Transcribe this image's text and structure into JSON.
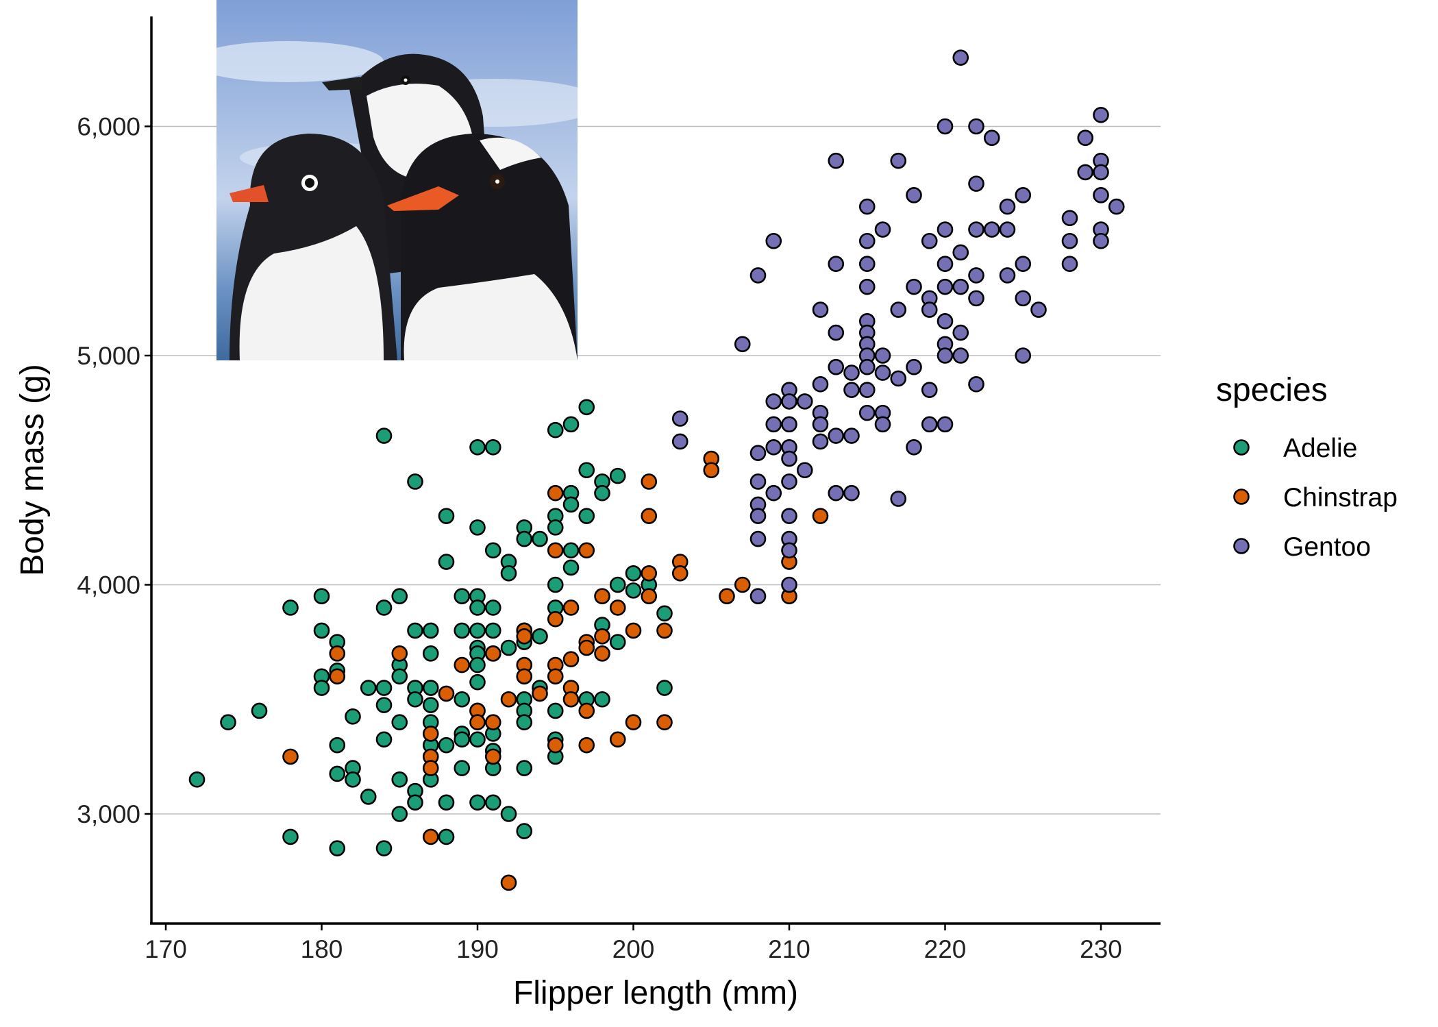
{
  "chart_data": {
    "type": "scatter",
    "title": "",
    "xlabel": "Flipper length (mm)",
    "ylabel": "Body mass (g)",
    "xlim": [
      169,
      234
    ],
    "ylim": [
      2520,
      6500
    ],
    "xticks": [
      170,
      180,
      190,
      200,
      210,
      220,
      230
    ],
    "xtick_labels": [
      "170",
      "180",
      "190",
      "200",
      "210",
      "220",
      "230"
    ],
    "yticks": [
      3000,
      4000,
      5000,
      6000
    ],
    "ytick_labels": [
      "3,000",
      "4,000",
      "5,000",
      "6,000"
    ],
    "grid": "horizontal major gridlines",
    "legend": {
      "title": "species",
      "position": "right"
    },
    "inset_image": "illustration of three penguins (Adelie, Chinstrap, Gentoo) in front of a sky and sea background",
    "series": [
      {
        "name": "Adelie",
        "color": "#1B9E77",
        "points": [
          [
            172,
            3150
          ],
          [
            174,
            3400
          ],
          [
            176,
            3450
          ],
          [
            178,
            3900
          ],
          [
            178,
            2900
          ],
          [
            180,
            3950
          ],
          [
            180,
            3800
          ],
          [
            180,
            3600
          ],
          [
            180,
            3550
          ],
          [
            181,
            3750
          ],
          [
            181,
            3625
          ],
          [
            181,
            3300
          ],
          [
            181,
            3175
          ],
          [
            181,
            2850
          ],
          [
            182,
            3425
          ],
          [
            182,
            3200
          ],
          [
            182,
            3150
          ],
          [
            183,
            3550
          ],
          [
            183,
            3075
          ],
          [
            184,
            4650
          ],
          [
            184,
            3900
          ],
          [
            184,
            3550
          ],
          [
            184,
            3475
          ],
          [
            184,
            3325
          ],
          [
            184,
            2850
          ],
          [
            185,
            3950
          ],
          [
            185,
            3650
          ],
          [
            185,
            3600
          ],
          [
            185,
            3400
          ],
          [
            185,
            3150
          ],
          [
            185,
            3000
          ],
          [
            186,
            4450
          ],
          [
            186,
            3800
          ],
          [
            186,
            3550
          ],
          [
            186,
            3500
          ],
          [
            186,
            3100
          ],
          [
            186,
            3050
          ],
          [
            187,
            3800
          ],
          [
            187,
            3700
          ],
          [
            187,
            3550
          ],
          [
            187,
            3475
          ],
          [
            187,
            3400
          ],
          [
            187,
            3300
          ],
          [
            187,
            3150
          ],
          [
            188,
            4300
          ],
          [
            188,
            4100
          ],
          [
            188,
            3300
          ],
          [
            188,
            3050
          ],
          [
            188,
            2900
          ],
          [
            189,
            3950
          ],
          [
            189,
            3800
          ],
          [
            189,
            3500
          ],
          [
            189,
            3350
          ],
          [
            189,
            3325
          ],
          [
            189,
            3200
          ],
          [
            190,
            4600
          ],
          [
            190,
            4250
          ],
          [
            190,
            3950
          ],
          [
            190,
            3900
          ],
          [
            190,
            3800
          ],
          [
            190,
            3725
          ],
          [
            190,
            3700
          ],
          [
            190,
            3650
          ],
          [
            190,
            3575
          ],
          [
            190,
            3450
          ],
          [
            190,
            3325
          ],
          [
            190,
            3050
          ],
          [
            191,
            4600
          ],
          [
            191,
            4150
          ],
          [
            191,
            3900
          ],
          [
            191,
            3800
          ],
          [
            191,
            3700
          ],
          [
            191,
            3350
          ],
          [
            191,
            3275
          ],
          [
            191,
            3200
          ],
          [
            191,
            3050
          ],
          [
            192,
            4100
          ],
          [
            192,
            4050
          ],
          [
            192,
            3725
          ],
          [
            192,
            3000
          ],
          [
            193,
            4250
          ],
          [
            193,
            4200
          ],
          [
            193,
            3800
          ],
          [
            193,
            3750
          ],
          [
            193,
            3500
          ],
          [
            193,
            3450
          ],
          [
            193,
            3400
          ],
          [
            193,
            3200
          ],
          [
            193,
            2925
          ],
          [
            194,
            4200
          ],
          [
            194,
            3775
          ],
          [
            194,
            3550
          ],
          [
            195,
            4675
          ],
          [
            195,
            4300
          ],
          [
            195,
            4250
          ],
          [
            195,
            4000
          ],
          [
            195,
            3900
          ],
          [
            195,
            3450
          ],
          [
            195,
            3325
          ],
          [
            195,
            3250
          ],
          [
            196,
            4700
          ],
          [
            196,
            4400
          ],
          [
            196,
            4350
          ],
          [
            196,
            4150
          ],
          [
            196,
            4075
          ],
          [
            197,
            4775
          ],
          [
            197,
            4500
          ],
          [
            197,
            4300
          ],
          [
            197,
            3500
          ],
          [
            198,
            4450
          ],
          [
            198,
            4400
          ],
          [
            198,
            3825
          ],
          [
            198,
            3500
          ],
          [
            199,
            4475
          ],
          [
            199,
            4000
          ],
          [
            199,
            3750
          ],
          [
            200,
            4050
          ],
          [
            200,
            3975
          ],
          [
            201,
            4000
          ],
          [
            202,
            3875
          ],
          [
            202,
            3550
          ]
        ]
      },
      {
        "name": "Chinstrap",
        "color": "#D95F02",
        "points": [
          [
            178,
            3250
          ],
          [
            181,
            3700
          ],
          [
            181,
            3600
          ],
          [
            185,
            3700
          ],
          [
            187,
            3350
          ],
          [
            187,
            3250
          ],
          [
            187,
            3200
          ],
          [
            187,
            2900
          ],
          [
            188,
            3525
          ],
          [
            189,
            3650
          ],
          [
            190,
            3450
          ],
          [
            190,
            3400
          ],
          [
            191,
            3700
          ],
          [
            191,
            3400
          ],
          [
            191,
            3250
          ],
          [
            192,
            3500
          ],
          [
            192,
            2700
          ],
          [
            193,
            3800
          ],
          [
            193,
            3775
          ],
          [
            193,
            3650
          ],
          [
            193,
            3600
          ],
          [
            194,
            3525
          ],
          [
            195,
            4400
          ],
          [
            195,
            4150
          ],
          [
            195,
            3850
          ],
          [
            195,
            3650
          ],
          [
            195,
            3600
          ],
          [
            195,
            3300
          ],
          [
            196,
            3900
          ],
          [
            196,
            3675
          ],
          [
            196,
            3550
          ],
          [
            196,
            3500
          ],
          [
            197,
            4150
          ],
          [
            197,
            3750
          ],
          [
            197,
            3725
          ],
          [
            197,
            3450
          ],
          [
            197,
            3300
          ],
          [
            198,
            3950
          ],
          [
            198,
            3775
          ],
          [
            198,
            3700
          ],
          [
            199,
            3900
          ],
          [
            199,
            3325
          ],
          [
            200,
            3800
          ],
          [
            200,
            3400
          ],
          [
            201,
            4450
          ],
          [
            201,
            4300
          ],
          [
            201,
            4050
          ],
          [
            201,
            3950
          ],
          [
            202,
            3800
          ],
          [
            202,
            3400
          ],
          [
            203,
            4100
          ],
          [
            203,
            4050
          ],
          [
            205,
            4550
          ],
          [
            205,
            4500
          ],
          [
            206,
            3950
          ],
          [
            207,
            4000
          ],
          [
            210,
            4800
          ],
          [
            210,
            4100
          ],
          [
            210,
            3950
          ],
          [
            212,
            4300
          ]
        ]
      },
      {
        "name": "Gentoo",
        "color": "#7570B3",
        "points": [
          [
            203,
            4725
          ],
          [
            203,
            4625
          ],
          [
            207,
            5050
          ],
          [
            208,
            5350
          ],
          [
            208,
            4575
          ],
          [
            208,
            4450
          ],
          [
            208,
            4350
          ],
          [
            208,
            4300
          ],
          [
            208,
            4200
          ],
          [
            208,
            3950
          ],
          [
            209,
            5500
          ],
          [
            209,
            4800
          ],
          [
            209,
            4700
          ],
          [
            209,
            4600
          ],
          [
            209,
            4400
          ],
          [
            210,
            4850
          ],
          [
            210,
            4800
          ],
          [
            210,
            4700
          ],
          [
            210,
            4600
          ],
          [
            210,
            4550
          ],
          [
            210,
            4450
          ],
          [
            210,
            4300
          ],
          [
            210,
            4200
          ],
          [
            210,
            4150
          ],
          [
            210,
            4000
          ],
          [
            211,
            4800
          ],
          [
            211,
            4500
          ],
          [
            212,
            5200
          ],
          [
            212,
            4875
          ],
          [
            212,
            4750
          ],
          [
            212,
            4700
          ],
          [
            212,
            4625
          ],
          [
            213,
            5850
          ],
          [
            213,
            5400
          ],
          [
            213,
            5100
          ],
          [
            213,
            4950
          ],
          [
            213,
            4650
          ],
          [
            213,
            4400
          ],
          [
            214,
            4925
          ],
          [
            214,
            4850
          ],
          [
            214,
            4650
          ],
          [
            214,
            4400
          ],
          [
            215,
            5650
          ],
          [
            215,
            5500
          ],
          [
            215,
            5400
          ],
          [
            215,
            5300
          ],
          [
            215,
            5150
          ],
          [
            215,
            5100
          ],
          [
            215,
            5050
          ],
          [
            215,
            5000
          ],
          [
            215,
            4950
          ],
          [
            215,
            4850
          ],
          [
            215,
            4750
          ],
          [
            216,
            5550
          ],
          [
            216,
            5000
          ],
          [
            216,
            4925
          ],
          [
            216,
            4750
          ],
          [
            216,
            4700
          ],
          [
            217,
            5850
          ],
          [
            217,
            5200
          ],
          [
            217,
            4900
          ],
          [
            217,
            4375
          ],
          [
            218,
            5700
          ],
          [
            218,
            5300
          ],
          [
            218,
            4950
          ],
          [
            218,
            4600
          ],
          [
            219,
            5500
          ],
          [
            219,
            5250
          ],
          [
            219,
            5200
          ],
          [
            219,
            4850
          ],
          [
            219,
            4700
          ],
          [
            220,
            6000
          ],
          [
            220,
            5550
          ],
          [
            220,
            5400
          ],
          [
            220,
            5300
          ],
          [
            220,
            5150
          ],
          [
            220,
            5050
          ],
          [
            220,
            5000
          ],
          [
            220,
            4700
          ],
          [
            221,
            6300
          ],
          [
            221,
            5450
          ],
          [
            221,
            5300
          ],
          [
            221,
            5100
          ],
          [
            221,
            5000
          ],
          [
            222,
            6000
          ],
          [
            222,
            5750
          ],
          [
            222,
            5550
          ],
          [
            222,
            5350
          ],
          [
            222,
            5250
          ],
          [
            222,
            4875
          ],
          [
            223,
            5950
          ],
          [
            223,
            5550
          ],
          [
            224,
            5650
          ],
          [
            224,
            5550
          ],
          [
            224,
            5350
          ],
          [
            225,
            5700
          ],
          [
            225,
            5400
          ],
          [
            225,
            5250
          ],
          [
            225,
            5000
          ],
          [
            226,
            5200
          ],
          [
            228,
            5600
          ],
          [
            228,
            5500
          ],
          [
            228,
            5400
          ],
          [
            229,
            5950
          ],
          [
            229,
            5800
          ],
          [
            230,
            6050
          ],
          [
            230,
            5850
          ],
          [
            230,
            5800
          ],
          [
            230,
            5700
          ],
          [
            230,
            5550
          ],
          [
            230,
            5500
          ],
          [
            231,
            5650
          ]
        ]
      }
    ]
  }
}
